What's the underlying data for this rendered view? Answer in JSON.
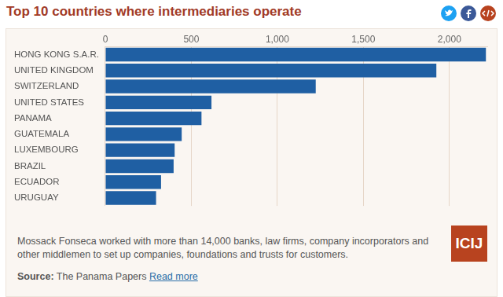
{
  "chart_data": {
    "type": "bar",
    "title": "Top 10 countries where intermediaries operate",
    "orientation": "horizontal",
    "categories": [
      "HONG KONG S.A.R.",
      "UNITED KINGDOM",
      "SWITZERLAND",
      "UNITED STATES",
      "PANAMA",
      "GUATEMALA",
      "LUXEMBOURG",
      "BRAZIL",
      "ECUADOR",
      "URUGUAY"
    ],
    "values": [
      2212,
      1924,
      1223,
      617,
      559,
      444,
      403,
      397,
      324,
      295
    ],
    "color": "#1f5fa3",
    "xlim": [
      0,
      2220
    ],
    "xticks": [
      0,
      500,
      {
        "value": 1000,
        "label": "1,000"
      },
      {
        "value": 1500,
        "label": "1,500"
      },
      {
        "value": 2000,
        "label": "2,000"
      }
    ],
    "grid": true
  },
  "footer": {
    "description": "Mossack Fonseca worked with more than 14,000 banks, law firms, company incorporators and other middlemen to set up companies, foundations and trusts for customers.",
    "source_label": "Source:",
    "source": "The Panama Papers",
    "link": "Read more",
    "logo": "ICIJ"
  }
}
